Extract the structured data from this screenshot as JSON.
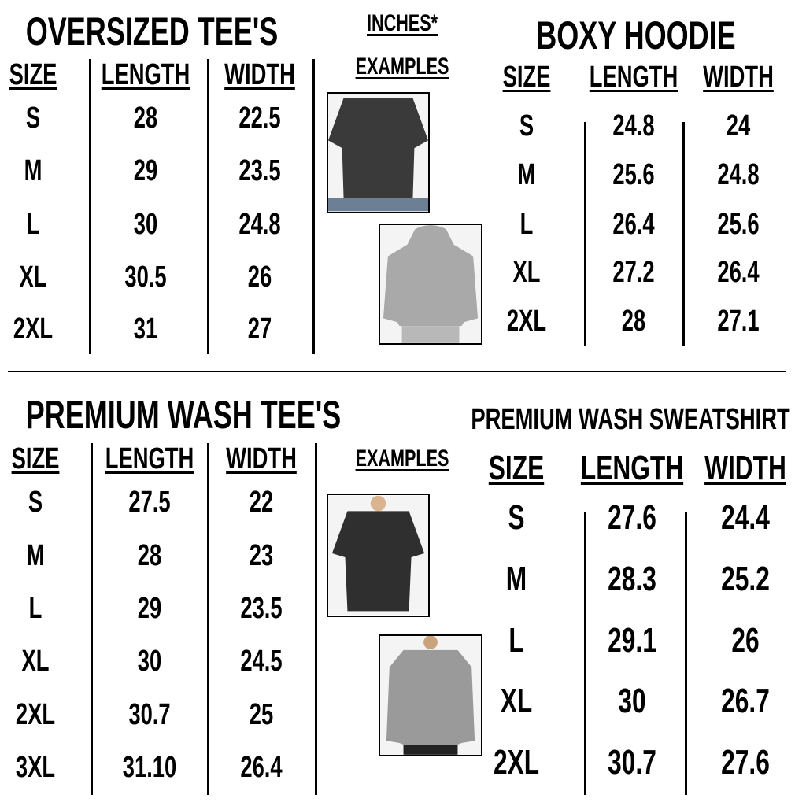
{
  "legend": {
    "units": "INCHES*",
    "examples_top": "EXAMPLES",
    "examples_bottom": "EXAMPLES"
  },
  "tables": [
    {
      "title": "OVERSIZED TEE'S",
      "headers": [
        "SIZE",
        "LENGTH",
        "WIDTH"
      ],
      "rows": [
        [
          "S",
          "28",
          "22.5"
        ],
        [
          "M",
          "29",
          "23.5"
        ],
        [
          "L",
          "30",
          "24.8"
        ],
        [
          "XL",
          "30.5",
          "26"
        ],
        [
          "2XL",
          "31",
          "27"
        ]
      ]
    },
    {
      "title": "BOXY HOODIE",
      "headers": [
        "SIZE",
        "LENGTH",
        "WIDTH"
      ],
      "rows": [
        [
          "S",
          "24.8",
          "24"
        ],
        [
          "M",
          "25.6",
          "24.8"
        ],
        [
          "L",
          "26.4",
          "25.6"
        ],
        [
          "XL",
          "27.2",
          "26.4"
        ],
        [
          "2XL",
          "28",
          "27.1"
        ]
      ]
    },
    {
      "title": "PREMIUM WASH TEE'S",
      "headers": [
        "SIZE",
        "LENGTH",
        "WIDTH"
      ],
      "rows": [
        [
          "S",
          "27.5",
          "22"
        ],
        [
          "M",
          "28",
          "23"
        ],
        [
          "L",
          "29",
          "23.5"
        ],
        [
          "XL",
          "30",
          "24.5"
        ],
        [
          "2XL",
          "30.7",
          "25"
        ],
        [
          "3XL",
          "31.10",
          "26.4"
        ]
      ]
    },
    {
      "title": "PREMIUM WASH SWEATSHIRT",
      "headers": [
        "SIZE",
        "LENGTH",
        "WIDTH"
      ],
      "rows": [
        [
          "S",
          "27.6",
          "24.4"
        ],
        [
          "M",
          "28.3",
          "25.2"
        ],
        [
          "L",
          "29.1",
          "26"
        ],
        [
          "XL",
          "30",
          "26.7"
        ],
        [
          "2XL",
          "30.7",
          "27.6"
        ]
      ]
    }
  ],
  "colors": {
    "text": "#000000",
    "dark_garment": "#3a3a3a",
    "gray_garment": "#a9a9a9"
  }
}
